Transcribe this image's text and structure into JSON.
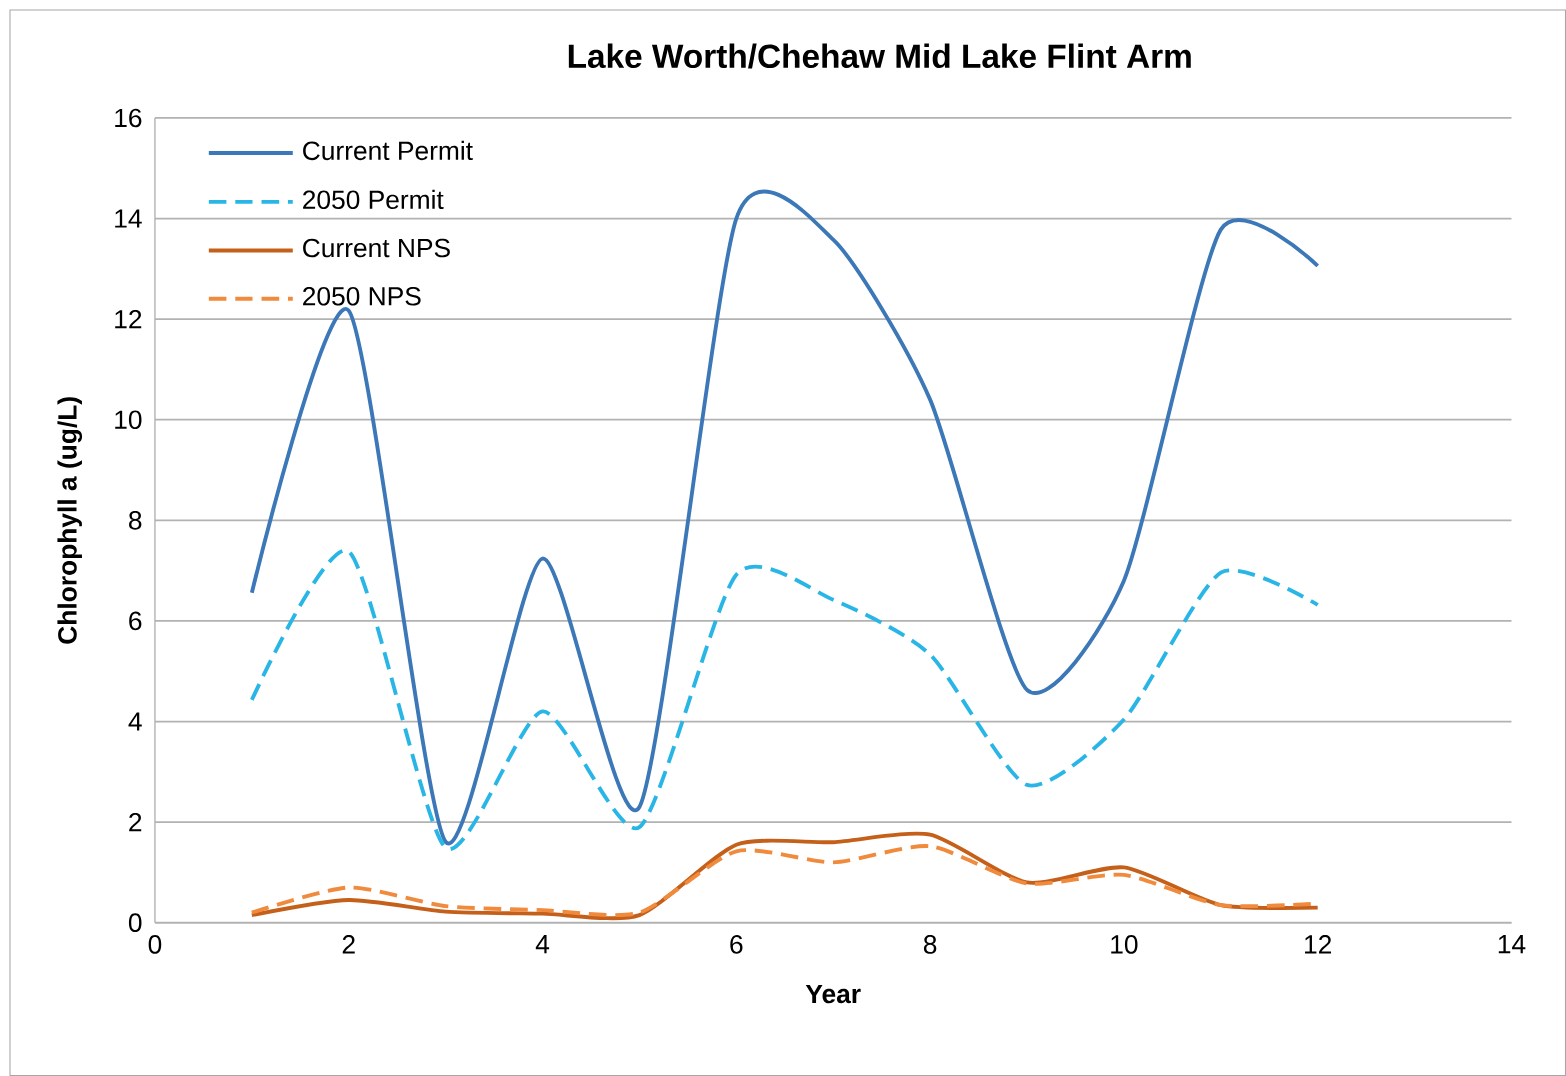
{
  "chart_data": {
    "type": "line",
    "title": "Lake Worth/Chehaw  Mid Lake Flint Arm",
    "xlabel": "Year",
    "ylabel": "Chlorophyll a (ug/L)",
    "x": [
      1,
      2,
      3,
      4,
      5,
      6,
      7,
      8,
      9,
      10,
      11,
      12
    ],
    "xlim": [
      0,
      14
    ],
    "xticks": [
      0,
      2,
      4,
      6,
      8,
      10,
      12,
      14
    ],
    "ylim": [
      0,
      16
    ],
    "yticks": [
      0,
      2,
      4,
      6,
      8,
      10,
      12,
      14,
      16
    ],
    "grid": "y",
    "legend": "top left",
    "series": [
      {
        "name": "Current Permit",
        "color": "#3c78b8",
        "line_style": "solid",
        "values": [
          6.56,
          12.17,
          1.61,
          7.24,
          2.3,
          14.0,
          13.58,
          10.4,
          4.63,
          6.8,
          13.78,
          13.06
        ]
      },
      {
        "name": "2050 Permit",
        "color": "#29b6e6",
        "line_style": "dashed",
        "values": [
          4.43,
          7.38,
          1.49,
          4.2,
          1.9,
          6.92,
          6.42,
          5.33,
          2.74,
          4.04,
          6.96,
          6.32
        ]
      },
      {
        "name": "Current NPS",
        "color": "#c5601b",
        "line_style": "solid",
        "values": [
          0.15,
          0.45,
          0.22,
          0.18,
          0.15,
          1.55,
          1.6,
          1.75,
          0.8,
          1.1,
          0.35,
          0.3
        ]
      },
      {
        "name": "2050 NPS",
        "color": "#f08a3c",
        "line_style": "dashed",
        "values": [
          0.2,
          0.7,
          0.33,
          0.25,
          0.2,
          1.42,
          1.2,
          1.52,
          0.78,
          0.95,
          0.35,
          0.38
        ]
      }
    ]
  }
}
